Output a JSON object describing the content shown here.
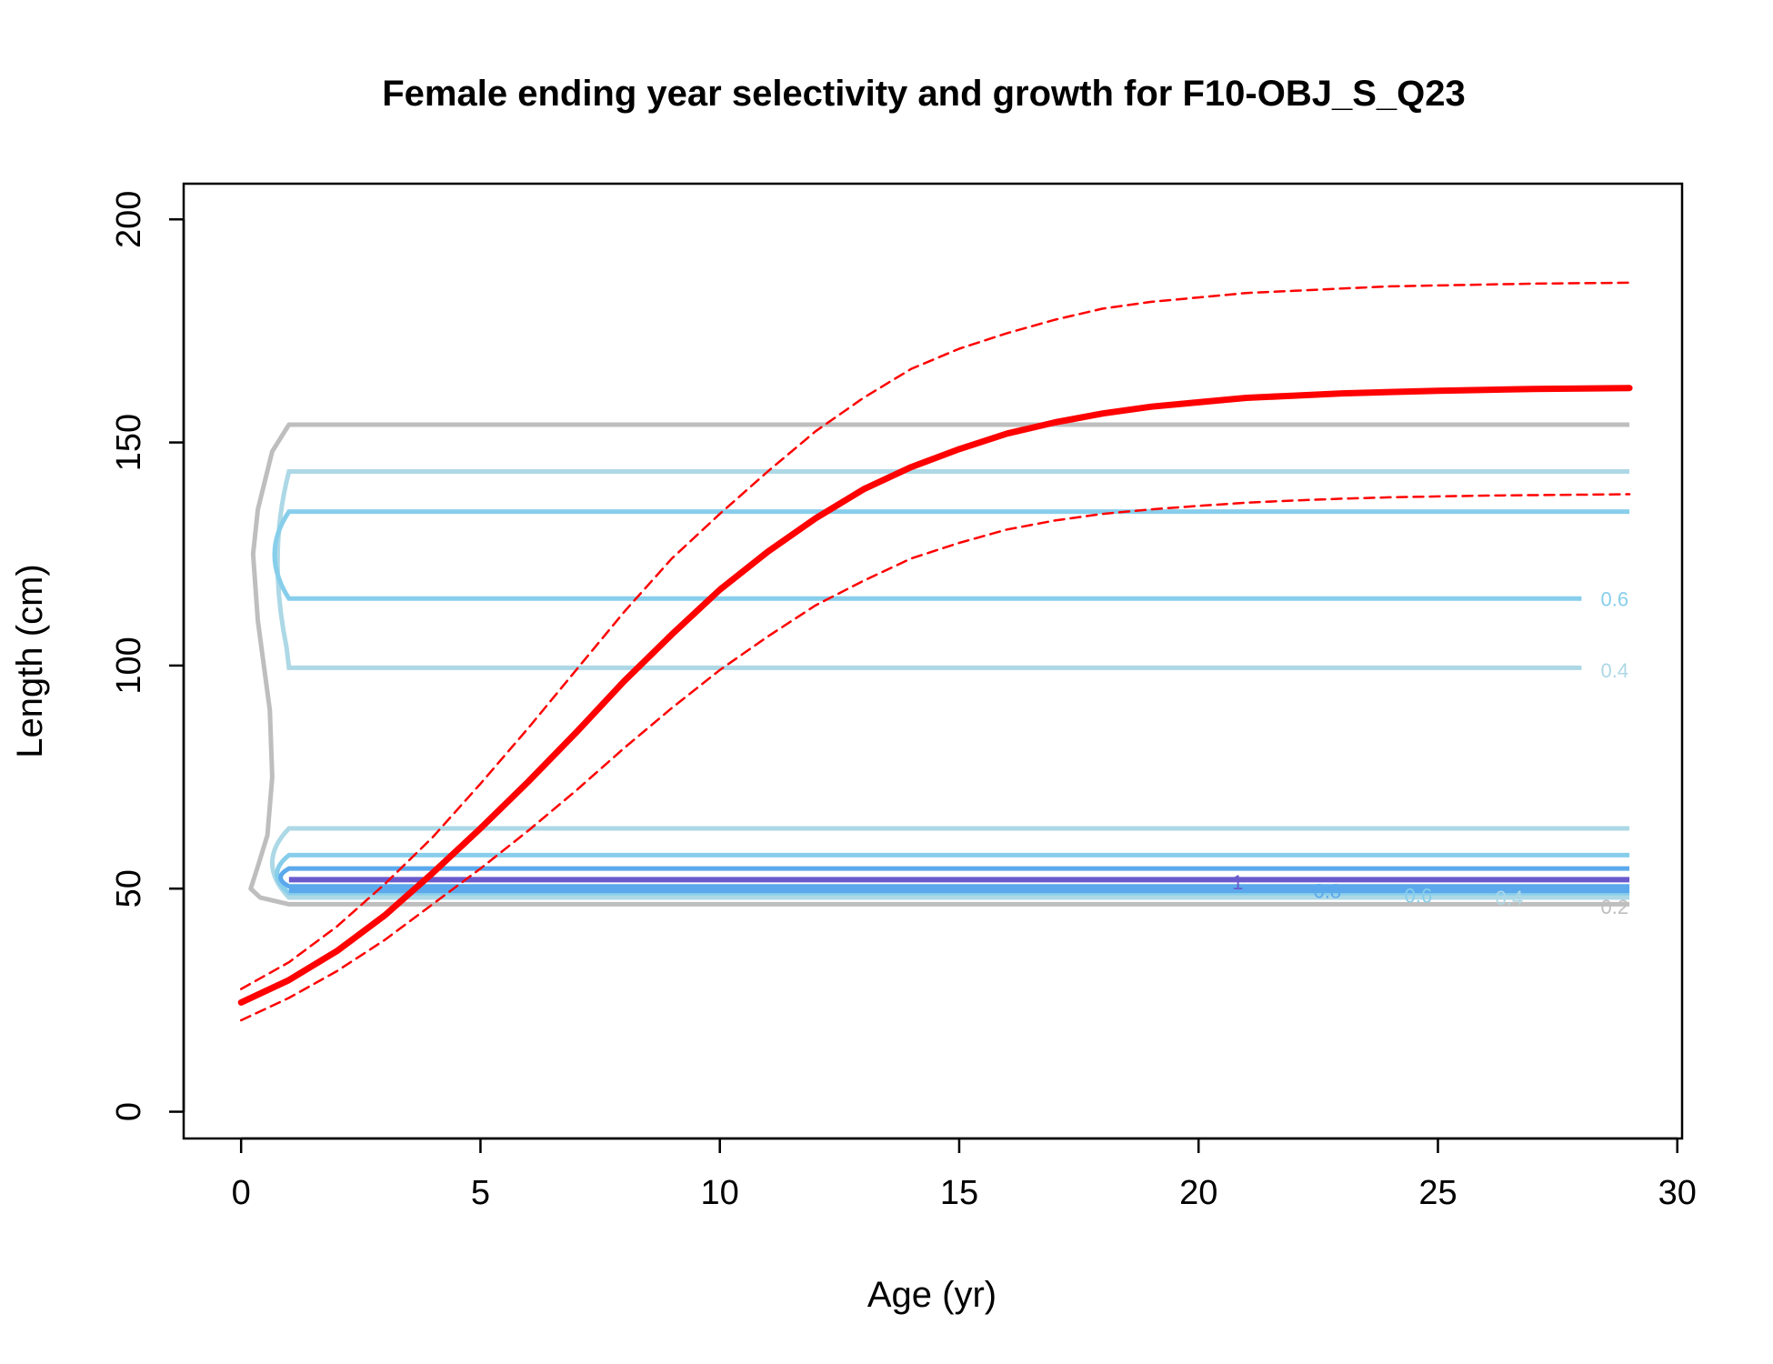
{
  "chart_data": {
    "type": "line",
    "title": "Female ending year selectivity and growth for F10-OBJ_S_Q23",
    "xlabel": "Age (yr)",
    "ylabel": "Length (cm)",
    "xlim": [
      -1.2,
      30.1
    ],
    "ylim": [
      -6,
      208
    ],
    "xticks": [
      "0",
      "5",
      "10",
      "15",
      "20",
      "25",
      "30"
    ],
    "yticks": [
      "0",
      "50",
      "100",
      "150",
      "200"
    ],
    "series": [
      {
        "role": "mean",
        "color": "#ff0000",
        "style": "solid",
        "x": [
          0,
          1,
          2,
          3,
          4,
          5,
          6,
          7,
          8,
          9,
          10,
          11,
          12,
          13,
          14,
          15,
          16,
          17,
          18,
          19,
          20,
          21,
          22,
          23,
          24,
          25,
          26,
          27,
          28,
          29
        ],
        "y": [
          24.5,
          29.5,
          36,
          44,
          53.5,
          63.5,
          74,
          85,
          96.5,
          107,
          117,
          125.5,
          133,
          139.5,
          144.5,
          148.5,
          152,
          154.5,
          156.5,
          158,
          159,
          160,
          160.5,
          161,
          161.3,
          161.6,
          161.8,
          162,
          162.1,
          162.2
        ]
      },
      {
        "role": "upper",
        "color": "#ff0000",
        "style": "dashed",
        "x": [
          0,
          1,
          2,
          3,
          4,
          5,
          6,
          7,
          8,
          9,
          10,
          11,
          12,
          13,
          14,
          15,
          16,
          17,
          18,
          19,
          20,
          21,
          22,
          23,
          24,
          25,
          26,
          27,
          28,
          29
        ],
        "y": [
          27.5,
          33.5,
          41.5,
          51,
          61.5,
          73.5,
          86,
          99,
          112,
          124,
          134,
          143.5,
          152.5,
          160,
          166.5,
          171,
          174.5,
          177.5,
          180,
          181.5,
          182.5,
          183.5,
          184,
          184.5,
          185,
          185.2,
          185.4,
          185.6,
          185.7,
          185.8
        ]
      },
      {
        "role": "lower",
        "color": "#ff0000",
        "style": "dashed",
        "x": [
          0,
          1,
          2,
          3,
          4,
          5,
          6,
          7,
          8,
          9,
          10,
          11,
          12,
          13,
          14,
          15,
          16,
          17,
          18,
          19,
          20,
          21,
          22,
          23,
          24,
          25,
          26,
          27,
          28,
          29
        ],
        "y": [
          20.5,
          25.5,
          31.5,
          38.5,
          46.5,
          54.5,
          63,
          72,
          81.5,
          90.5,
          99,
          106.5,
          113.5,
          119,
          124,
          127.5,
          130.5,
          132.5,
          134,
          135,
          135.8,
          136.5,
          137,
          137.4,
          137.7,
          137.9,
          138.1,
          138.2,
          138.3,
          138.4
        ]
      }
    ],
    "contours": [
      {
        "level": "0.2",
        "color": "#bebebe",
        "band": [
          46.5,
          154
        ],
        "label": "0.2"
      },
      {
        "level": "0.4",
        "color": "#add8e6",
        "band": [
          48,
          63.5
        ],
        "upper_band": [
          99.5,
          143.5
        ],
        "label": "0.4"
      },
      {
        "level": "0.6",
        "color": "#87ceeb",
        "band": [
          49,
          57.5
        ],
        "upper_band": [
          115,
          134.5
        ],
        "label": "0.6"
      },
      {
        "level": "0.8",
        "color": "#5ba9ec",
        "band": [
          50.5,
          54.5
        ],
        "label": "0.8"
      },
      {
        "level": "1",
        "color": "#6a5acd",
        "band": [
          52,
          52
        ],
        "label": "1"
      }
    ]
  }
}
